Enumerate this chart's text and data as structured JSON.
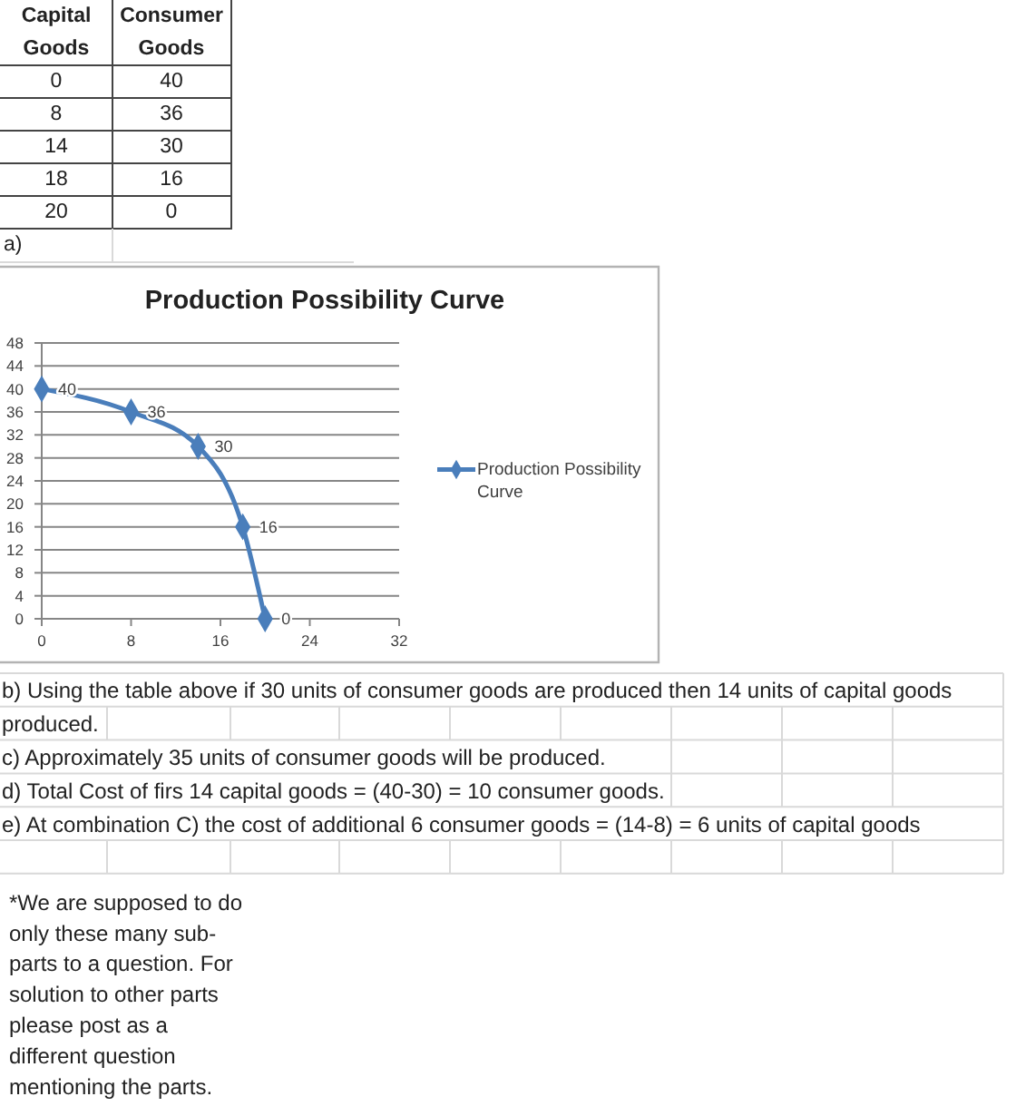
{
  "chart_data": {
    "type": "line",
    "title": "Production Possibility Curve",
    "x": [
      0,
      8,
      14,
      18,
      20
    ],
    "series": [
      {
        "name": "Production Possibility Curve",
        "color": "#4a7ebb",
        "values": [
          40,
          36,
          30,
          16,
          0
        ]
      }
    ],
    "xlim": [
      0,
      32
    ],
    "xticks": [
      0,
      8,
      16,
      24,
      32
    ],
    "ylim": [
      0,
      48
    ],
    "yticks": [
      0,
      4,
      8,
      12,
      16,
      20,
      24,
      28,
      32,
      36,
      40,
      44,
      48
    ],
    "grid": "y",
    "legend": "right",
    "marker": "diamond",
    "line_style": "solid",
    "data_labels": true,
    "annotations": [
      "Capital Goods",
      "Consumer Goods",
      "0",
      "40",
      "8",
      "36",
      "14",
      "30",
      "18",
      "16",
      "20",
      "0",
      "a)",
      "b) Using the table above if 30 units of consumer goods are produced then 14 units of capital goods produced.",
      "c) Approximately 35 units of consumer goods will be produced.",
      "d) Total Cost of firs 14 capital goods = (40-30) = 10 consumer goods.",
      "e) At combination C) the cost of additional 6 consumer goods = (14-8) = 6 units of capital goods",
      "*We are supposed to do only these many sub-parts to a question. For solution to other parts please post as a different question mentioning the parts."
    ]
  }
}
